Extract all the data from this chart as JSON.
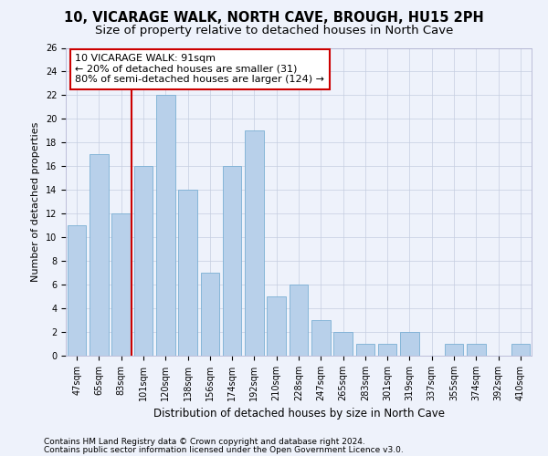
{
  "title1": "10, VICARAGE WALK, NORTH CAVE, BROUGH, HU15 2PH",
  "title2": "Size of property relative to detached houses in North Cave",
  "xlabel": "Distribution of detached houses by size in North Cave",
  "ylabel": "Number of detached properties",
  "categories": [
    "47sqm",
    "65sqm",
    "83sqm",
    "101sqm",
    "120sqm",
    "138sqm",
    "156sqm",
    "174sqm",
    "192sqm",
    "210sqm",
    "228sqm",
    "247sqm",
    "265sqm",
    "283sqm",
    "301sqm",
    "319sqm",
    "337sqm",
    "355sqm",
    "374sqm",
    "392sqm",
    "410sqm"
  ],
  "values": [
    11,
    17,
    12,
    16,
    22,
    14,
    7,
    16,
    19,
    5,
    6,
    3,
    2,
    1,
    1,
    2,
    0,
    1,
    1,
    0,
    1
  ],
  "bar_color": "#b8d0ea",
  "bar_edge_color": "#7aafd4",
  "vline_color": "#cc0000",
  "ylim": [
    0,
    26
  ],
  "yticks": [
    0,
    2,
    4,
    6,
    8,
    10,
    12,
    14,
    16,
    18,
    20,
    22,
    24,
    26
  ],
  "annotation_text": "10 VICARAGE WALK: 91sqm\n← 20% of detached houses are smaller (31)\n80% of semi-detached houses are larger (124) →",
  "annotation_box_color": "#ffffff",
  "annotation_box_edge": "#cc0000",
  "footer1": "Contains HM Land Registry data © Crown copyright and database right 2024.",
  "footer2": "Contains public sector information licensed under the Open Government Licence v3.0.",
  "background_color": "#eef2fb",
  "grid_color": "#c5cde0",
  "title1_fontsize": 10.5,
  "title2_fontsize": 9.5,
  "xlabel_fontsize": 8.5,
  "ylabel_fontsize": 8,
  "tick_fontsize": 7,
  "annotation_fontsize": 8,
  "footer_fontsize": 6.5
}
